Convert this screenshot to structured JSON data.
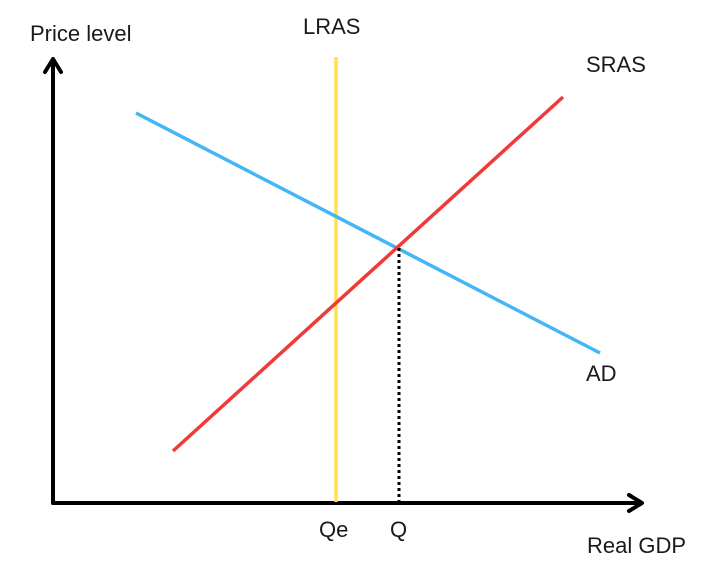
{
  "axes": {
    "y_label": "Price level",
    "x_label": "Real GDP"
  },
  "curves": {
    "lras": {
      "label": "LRAS",
      "color": "#FFE14D"
    },
    "sras": {
      "label": "SRAS",
      "color": "#F03A3A"
    },
    "ad": {
      "label": "AD",
      "color": "#45B6F5"
    }
  },
  "x_axis_marks": {
    "qe": "Qe",
    "q": "Q"
  },
  "colors": {
    "axis": "#000000",
    "guide": "#000000"
  }
}
